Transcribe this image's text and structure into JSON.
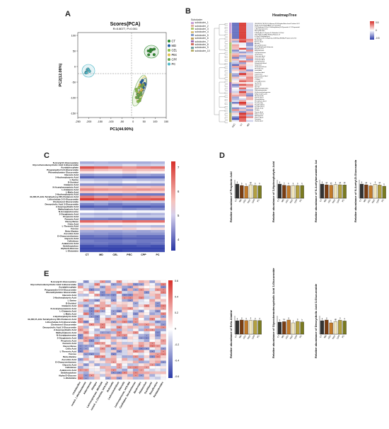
{
  "panel_labels": {
    "a": "A",
    "b": "B",
    "c": "C",
    "d": "D",
    "e": "E"
  },
  "pca": {
    "title": "Scores(PCA)",
    "subtitle": "R=0.8077, P=0.001",
    "xlabel": "PC1(44.90%)",
    "ylabel": "PC2(12.08%)",
    "xticks": [
      "-250",
      "-200",
      "-150",
      "-100",
      "-50",
      "0",
      "50",
      "100",
      "150"
    ],
    "yticks": [
      "100",
      "50",
      "0",
      "-50",
      "-100",
      "-150"
    ],
    "legend": [
      {
        "name": "CT",
        "color": "#2e8b2e"
      },
      {
        "name": "MD",
        "color": "#1f5fa8"
      },
      {
        "name": "CEL",
        "color": "#8bc34a"
      },
      {
        "name": "PEC",
        "color": "#e0c04a"
      },
      {
        "name": "CPP",
        "color": "#6aa84f"
      },
      {
        "name": "PC",
        "color": "#4fb8c8"
      }
    ]
  },
  "heatmap_tree": {
    "title": "HeatmapTree",
    "legend_title": "Subcluster",
    "subclusters": [
      "subcluster_1",
      "subcluster_2",
      "subcluster_3",
      "subcluster_4",
      "subcluster_5",
      "subcluster_6",
      "subcluster_7",
      "subcluster_8",
      "subcluster_9",
      "subcluster_10"
    ],
    "sub_colors": [
      "#c8a0d8",
      "#e0b0a0",
      "#b0c870",
      "#d8c080",
      "#8098c8",
      "#c0a060",
      "#a070b0",
      "#d07060",
      "#70a0a0",
      "#b8b070"
    ],
    "scale": [
      "0.5",
      "0",
      "-0.5"
    ],
    "columns": [
      "PEC",
      "CT",
      "MD"
    ],
    "rows": [
      "(3S,5R,6S,7E,9S)-5,6-Epoxy-3,9-Dihydro-Beta-Ionol-Carbon-3-Ol",
      "1β-(3,3-Dimethyl)-dA(F)-Cuscuta Acid",
      "2-(2-Hydroxy-3-Oxo-2-Sulfanylidene)-N-Pyrazolin-5-Yl Propanolol",
      "1-Aminopropanone",
      "Benzyl Acetate",
      "3-Methylbut-1-Propan-2-Ylidenbut-1,2-Diol",
      "(5Z)-Hydroxy-Alkyl-Methyl-Heptan-Ol",
      "4-Vinyl-2-Hepylphenol",
      "17-Androstene-3-Hydroxy-2-Methyl-(3Β,5Α)-Prognan-20-One",
      "Acetamide",
      "Azelaic Acid",
      "Acetoin",
      "Benzyl Benzoate",
      "Bis(2-Ethylhexyl) Sebacate",
      "Butylbenzene",
      "Butyrolactone",
      "Cyclopentanone",
      "Cholesterol",
      "Citraconic Acid",
      "Coumarin 106",
      "Coumaric Acid",
      "Cyclopentanol",
      "Deoxycholic Acid",
      "Galactinol",
      "Cholesterol Ester",
      "Hexadecane",
      "Isosorbide",
      "Isovaleric Acid",
      "Isoprenone",
      "Ketoisovaleric Acid",
      "Ketoleucine",
      "L-Valine",
      "Leucylthreonine",
      "Lys-Ile-Ile",
      "Lyprocarb",
      "Lys-Lys",
      "N,N-Dimethylaniline",
      "N-Acetylaspartate",
      "N-Glucosylsphingosine",
      "N-Myristoyl Lysine",
      "Nicotinamide",
      "Palmitic Acid",
      "Phenylalanine",
      "Phenyllactic Acid",
      "Pro-Pro-Gly",
      "PC(18:2/18:2)",
      "PC(18:0/18:1)",
      "PE(18:1/0:0)",
      "Proline",
      "Pyruvic Acid",
      "Sebacic Acid",
      "Sphingosine",
      "Suberic Acid",
      "Tyramine",
      "Vanillic Acid"
    ]
  },
  "heatmap_c": {
    "columns": [
      "CT",
      "MD",
      "CEL",
      "PEC",
      "CPP",
      "PC"
    ],
    "scale": [
      "7",
      "6",
      "5",
      "4"
    ],
    "rows": [
      "N-Acetyl-D-Glucosamine",
      "Glycochenodeoxycholic Acid 3-Glucuronide",
      "Acetylphosphate",
      "Pregnanediol 3-O-Glucuronide",
      "Phenethylamine Glucuronide",
      "Glucaric Acid",
      "3-Hydroxybutyric Acid",
      "L-Serine",
      "D-Sorbitol",
      "Glutamic Acid",
      "N-Acetylneuraminic Acid",
      "L-Glutamic Acid",
      "L-Malic Acid",
      "2-Hydroxybutyric Acid",
      "3A,6B,7A,12A-Tetrahydroxy-5B-Cholanoic Acid",
      "Lithocholate 3-O-Glucuronide",
      "Cholesterol Glucuronide",
      "Deoxycholic Acid 3-Glucuronide",
      "2-Isopropylmalic Acid",
      "Methylmalonic Acid",
      "N-Acetylputrescine",
      "2-Oxoglutaric Acid",
      "Propionic Acid",
      "Fumaric Acid",
      "Deoxyribose",
      "Citric Acid",
      "L-Threonic Acid",
      "Fucose",
      "Beta-Alanine",
      "Ascorbic Acid",
      "D-Glucuronolactone",
      "Glyceric Acid",
      "Cellobiose",
      "Arabinonic Acid",
      "Sedoheptulose",
      "Alpha-D-Glucose",
      "L-Glutamine"
    ],
    "values": [
      [
        4.6,
        4.7,
        4.6,
        4.6,
        4.6,
        4.7
      ],
      [
        5.0,
        4.9,
        4.9,
        5.1,
        4.9,
        5.0
      ],
      [
        7.0,
        6.8,
        6.6,
        6.4,
        6.6,
        6.7
      ],
      [
        6.2,
        6.0,
        5.9,
        6.1,
        6.0,
        6.0
      ],
      [
        5.6,
        5.5,
        5.5,
        5.7,
        5.6,
        5.5
      ],
      [
        4.4,
        4.5,
        4.5,
        4.4,
        4.5,
        4.4
      ],
      [
        3.9,
        4.0,
        4.0,
        3.9,
        4.0,
        4.0
      ],
      [
        4.8,
        4.7,
        4.7,
        4.8,
        4.7,
        4.7
      ],
      [
        5.2,
        5.1,
        5.0,
        5.3,
        5.2,
        5.1
      ],
      [
        4.3,
        4.3,
        4.2,
        4.3,
        4.3,
        4.3
      ],
      [
        6.0,
        5.9,
        5.9,
        6.0,
        5.9,
        6.0
      ],
      [
        6.5,
        6.4,
        6.3,
        6.3,
        6.4,
        6.3
      ],
      [
        5.9,
        5.8,
        5.8,
        5.9,
        5.8,
        5.8
      ],
      [
        4.1,
        4.2,
        4.1,
        4.2,
        4.1,
        4.1
      ],
      [
        6.6,
        6.3,
        6.5,
        6.4,
        6.5,
        6.4
      ],
      [
        7.2,
        7.0,
        6.8,
        6.9,
        6.9,
        7.0
      ],
      [
        4.9,
        4.8,
        4.7,
        4.8,
        4.8,
        4.9
      ],
      [
        4.2,
        4.4,
        4.1,
        4.3,
        4.3,
        4.2
      ],
      [
        3.8,
        3.9,
        3.9,
        3.8,
        3.8,
        3.9
      ],
      [
        4.4,
        4.3,
        4.4,
        4.3,
        4.4,
        4.3
      ],
      [
        5.4,
        5.3,
        5.3,
        5.4,
        5.3,
        5.3
      ],
      [
        4.7,
        4.6,
        4.6,
        4.7,
        4.6,
        4.7
      ],
      [
        5.0,
        4.9,
        4.9,
        5.0,
        4.9,
        4.9
      ],
      [
        4.2,
        4.2,
        4.1,
        4.2,
        4.2,
        4.2
      ],
      [
        6.8,
        6.7,
        6.6,
        6.8,
        6.7,
        6.7
      ],
      [
        5.6,
        5.5,
        5.5,
        5.6,
        5.5,
        5.5
      ],
      [
        4.8,
        4.8,
        4.7,
        4.8,
        4.8,
        4.7
      ],
      [
        5.8,
        5.7,
        5.7,
        5.8,
        5.6,
        5.7
      ],
      [
        4.6,
        4.5,
        4.5,
        4.6,
        4.5,
        4.6
      ],
      [
        4.4,
        4.4,
        4.3,
        4.4,
        4.4,
        4.4
      ],
      [
        4.0,
        4.1,
        4.0,
        4.1,
        4.0,
        4.0
      ],
      [
        3.9,
        3.9,
        3.8,
        3.9,
        3.9,
        3.9
      ],
      [
        4.2,
        4.1,
        4.1,
        4.2,
        4.1,
        4.1
      ],
      [
        4.1,
        4.1,
        4.0,
        4.1,
        4.0,
        4.1
      ],
      [
        3.7,
        3.8,
        3.7,
        3.7,
        3.8,
        3.7
      ],
      [
        3.6,
        3.6,
        3.6,
        3.6,
        3.6,
        3.6
      ],
      [
        3.7,
        3.7,
        3.6,
        3.7,
        3.7,
        3.7
      ]
    ]
  },
  "bars_d": {
    "groups": [
      "CT",
      "MD",
      "CEL",
      "PEC",
      "CPP",
      "PC"
    ],
    "colors": [
      "#333333",
      "#7a3d12",
      "#c27a2a",
      "#f0e6c0",
      "#b3a040",
      "#7a7a20"
    ],
    "plots": [
      {
        "ylabel": "Relative abundance of Propionic Acid",
        "values": [
          1.0,
          0.9,
          0.85,
          0.95,
          0.9,
          0.88
        ],
        "letters": [
          "a",
          "b",
          "b",
          "ab",
          "b",
          "b"
        ]
      },
      {
        "ylabel": "Relative abundance of 3-Hydroxybutyric Acid",
        "values": [
          1.0,
          0.92,
          0.88,
          0.9,
          0.9,
          0.9
        ],
        "letters": [
          "a",
          "b",
          "b",
          "b",
          "b",
          "b"
        ]
      },
      {
        "ylabel": "Relative abundance of N-Acetylneuraminic Acid",
        "values": [
          1.0,
          0.95,
          0.92,
          0.97,
          0.95,
          0.94
        ],
        "letters": [
          "a",
          "ab",
          "ab",
          "a",
          "ab",
          "ab"
        ]
      },
      {
        "ylabel": "Relative abundance of N-Acetyl-D-Glucosamine",
        "values": [
          1.0,
          0.95,
          0.88,
          0.98,
          0.93,
          0.85
        ],
        "letters": [
          "a",
          "ab",
          "b",
          "a",
          "ab",
          "b"
        ]
      },
      {
        "ylabel": "Relative abundance of Beta-Alanine",
        "values": [
          0.95,
          1.0,
          0.96,
          0.98,
          0.97,
          0.96
        ],
        "letters": [
          "a",
          "a",
          "a",
          "a",
          "a",
          "a"
        ]
      },
      {
        "ylabel": "Relative abundance of Glycochenodeoxycholic Acid 3-Glucuronide",
        "values": [
          0.85,
          0.88,
          1.0,
          0.8,
          0.9,
          0.86
        ],
        "letters": [
          "b",
          "bc",
          "a",
          "c",
          "b",
          "b"
        ]
      },
      {
        "ylabel": "Relative abundance of Deoxycholic Acid 3-Glucuronide",
        "values": [
          0.95,
          1.0,
          0.8,
          0.9,
          0.98,
          0.93
        ],
        "letters": [
          "a",
          "a",
          "b",
          "ab",
          "a",
          "a"
        ]
      }
    ]
  },
  "corr_e": {
    "rows": [
      "N-Acetyl-D-Glucosamine",
      "Glycochenodeoxycholic Acid 3-Glucuronide",
      "Acetylphosphate",
      "Pregnanediol 3-O-Glucuronide",
      "Phenethylamine Glucuronide",
      "Glucaric Acid",
      "3-Hydroxybutyric Acid",
      "L-Serine",
      "D-Sorbitol",
      "Glutamic Acid",
      "N-Acetylneuraminic Acid",
      "L-Glutamic Acid",
      "L-Malic Acid",
      "2-Hydroxybutyric Acid",
      "3A,6B,7A,12A-Tetrahydroxy-5B-Cholanoic Acid",
      "Lithocholate 3-O-Glucuronide",
      "Cholesterol Glucuronide",
      "Deoxycholic Acid 3-Glucuronide",
      "2-Isopropylmalic Acid",
      "Methylmalonic Acid",
      "N-Acetylputrescine",
      "2-Oxoglutaric Acid",
      "Propionic Acid",
      "Fumaric Acid",
      "Deoxyribose",
      "Citric Acid",
      "L-Threonic Acid",
      "Fucose",
      "Beta-Alanine",
      "Ascorbic Acid",
      "D-Glucuronolactone",
      "Glyceric Acid",
      "Cellobiose",
      "Arabinonic Acid",
      "Sedoheptulose",
      "Alpha-D-Glucose",
      "L-Glutamine"
    ],
    "columns": [
      "Lactobacillus",
      "norank_f_Muribaculaceae",
      "Akkermansia",
      "Alistipes",
      "Lachnospiraceae_NK4A136",
      "norank_o_Clostridia_UCG-014",
      "Dubosiella",
      "Lachnoclostridium",
      "Rikenella",
      "Lachnospiraceae_UCG-006",
      "Candidatus_Saccharimonas",
      "Bacteroides",
      "Allobaculum",
      "Oscillibacter",
      "Desulfovibrio",
      "Parabacteroides"
    ],
    "scale": [
      "0.6",
      "0.4",
      "0.2",
      "0",
      "-0.2",
      "-0.4",
      "-0.6"
    ]
  }
}
